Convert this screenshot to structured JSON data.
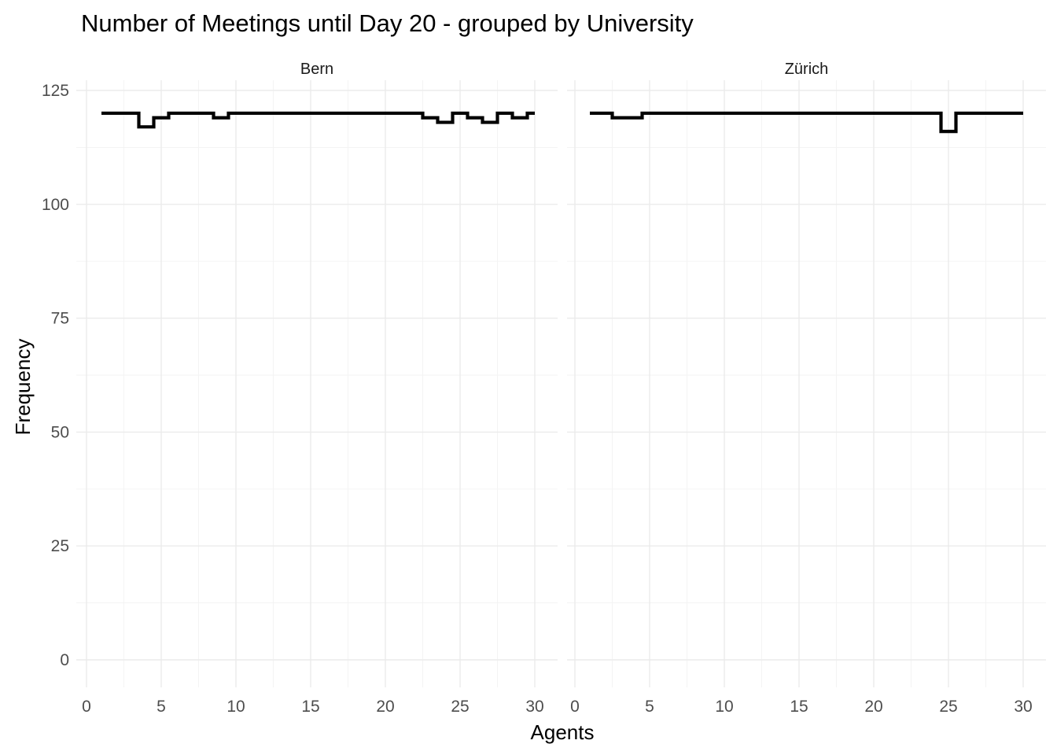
{
  "chart_data": {
    "type": "line",
    "style": "step",
    "title": "Number of Meetings until Day 20 - grouped by University",
    "xlabel": "Agents",
    "ylabel": "Frequency",
    "xlim": [
      0,
      30
    ],
    "ylim": [
      0,
      125
    ],
    "x_ticks": [
      "0",
      "5",
      "10",
      "15",
      "20",
      "25",
      "30"
    ],
    "y_ticks": [
      "0",
      "25",
      "50",
      "75",
      "100",
      "125"
    ],
    "grid": true,
    "legend": "none",
    "facet_by": "University",
    "panels": [
      {
        "strip_label": "Bern",
        "x": [
          1,
          2,
          3,
          4,
          5,
          6,
          7,
          8,
          9,
          10,
          11,
          12,
          13,
          14,
          15,
          16,
          17,
          18,
          19,
          20,
          21,
          22,
          23,
          24,
          25,
          26,
          27,
          28,
          29,
          30
        ],
        "y": [
          120,
          120,
          120,
          117,
          119,
          120,
          120,
          120,
          119,
          120,
          120,
          120,
          120,
          120,
          120,
          120,
          120,
          120,
          120,
          120,
          120,
          120,
          119,
          118,
          120,
          119,
          118,
          120,
          119,
          120
        ]
      },
      {
        "strip_label": "Zürich",
        "x": [
          1,
          2,
          3,
          4,
          5,
          6,
          7,
          8,
          9,
          10,
          11,
          12,
          13,
          14,
          15,
          16,
          17,
          18,
          19,
          20,
          21,
          22,
          23,
          24,
          25,
          26,
          27,
          28,
          29,
          30
        ],
        "y": [
          120,
          120,
          119,
          119,
          120,
          120,
          120,
          120,
          120,
          120,
          120,
          120,
          120,
          120,
          120,
          120,
          120,
          120,
          120,
          120,
          120,
          120,
          120,
          120,
          116,
          120,
          120,
          120,
          120,
          120
        ]
      }
    ]
  }
}
